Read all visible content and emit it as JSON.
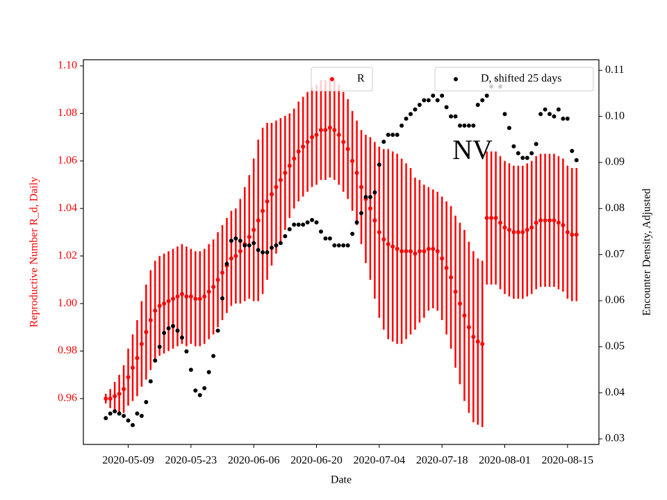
{
  "chart_data": {
    "type": "scatter",
    "annotation": "NV",
    "xlabel": "Date",
    "ylabel": "Reproductive Number R_d, Daily",
    "y2label": "Encounter Density, Adjusted",
    "x": [
      "2020-05-04",
      "2020-05-05",
      "2020-05-06",
      "2020-05-07",
      "2020-05-08",
      "2020-05-09",
      "2020-05-10",
      "2020-05-11",
      "2020-05-12",
      "2020-05-13",
      "2020-05-14",
      "2020-05-15",
      "2020-05-16",
      "2020-05-17",
      "2020-05-18",
      "2020-05-19",
      "2020-05-20",
      "2020-05-21",
      "2020-05-22",
      "2020-05-23",
      "2020-05-24",
      "2020-05-25",
      "2020-05-26",
      "2020-05-27",
      "2020-05-28",
      "2020-05-29",
      "2020-05-30",
      "2020-05-31",
      "2020-06-01",
      "2020-06-02",
      "2020-06-03",
      "2020-06-04",
      "2020-06-05",
      "2020-06-06",
      "2020-06-07",
      "2020-06-08",
      "2020-06-09",
      "2020-06-10",
      "2020-06-11",
      "2020-06-12",
      "2020-06-13",
      "2020-06-14",
      "2020-06-15",
      "2020-06-16",
      "2020-06-17",
      "2020-06-18",
      "2020-06-19",
      "2020-06-20",
      "2020-06-21",
      "2020-06-22",
      "2020-06-23",
      "2020-06-24",
      "2020-06-25",
      "2020-06-26",
      "2020-06-27",
      "2020-06-28",
      "2020-06-29",
      "2020-06-30",
      "2020-07-01",
      "2020-07-02",
      "2020-07-03",
      "2020-07-04",
      "2020-07-05",
      "2020-07-06",
      "2020-07-07",
      "2020-07-08",
      "2020-07-09",
      "2020-07-10",
      "2020-07-11",
      "2020-07-12",
      "2020-07-13",
      "2020-07-14",
      "2020-07-15",
      "2020-07-16",
      "2020-07-17",
      "2020-07-18",
      "2020-07-19",
      "2020-07-20",
      "2020-07-21",
      "2020-07-22",
      "2020-07-23",
      "2020-07-24",
      "2020-07-25",
      "2020-07-26",
      "2020-07-27",
      "2020-07-28",
      "2020-07-29",
      "2020-07-30",
      "2020-07-31",
      "2020-08-01",
      "2020-08-02",
      "2020-08-03",
      "2020-08-04",
      "2020-08-05",
      "2020-08-06",
      "2020-08-07",
      "2020-08-08",
      "2020-08-09",
      "2020-08-10",
      "2020-08-11",
      "2020-08-12",
      "2020-08-13",
      "2020-08-14",
      "2020-08-15",
      "2020-08-16",
      "2020-08-17"
    ],
    "series": [
      {
        "name": "R",
        "color": "#ff0000",
        "axis": "y",
        "values": [
          0.96,
          0.96,
          0.961,
          0.962,
          0.964,
          0.969,
          0.973,
          0.977,
          0.983,
          0.988,
          0.993,
          0.997,
          0.999,
          1.0,
          1.001,
          1.002,
          1.003,
          1.004,
          1.003,
          1.003,
          1.002,
          1.002,
          1.003,
          1.005,
          1.007,
          1.01,
          1.013,
          1.016,
          1.019,
          1.02,
          1.022,
          1.025,
          1.028,
          1.031,
          1.035,
          1.039,
          1.043,
          1.046,
          1.049,
          1.052,
          1.055,
          1.058,
          1.061,
          1.064,
          1.066,
          1.068,
          1.07,
          1.071,
          1.073,
          1.073,
          1.074,
          1.073,
          1.071,
          1.068,
          1.065,
          1.06,
          1.055,
          1.049,
          1.044,
          1.04,
          1.035,
          1.03,
          1.027,
          1.025,
          1.024,
          1.023,
          1.022,
          1.022,
          1.022,
          1.021,
          1.022,
          1.022,
          1.023,
          1.023,
          1.022,
          1.019,
          1.015,
          1.011,
          1.005,
          1.0,
          0.995,
          0.99,
          0.986,
          0.984,
          0.983,
          1.036,
          1.036,
          1.036,
          1.034,
          1.032,
          1.031,
          1.03,
          1.03,
          1.03,
          1.031,
          1.032,
          1.034,
          1.035,
          1.035,
          1.035,
          1.035,
          1.034,
          1.033,
          1.03,
          1.029,
          1.029
        ],
        "errors": [
          0.002,
          0.004,
          0.006,
          0.008,
          0.01,
          0.012,
          0.014,
          0.016,
          0.018,
          0.02,
          0.021,
          0.021,
          0.021,
          0.021,
          0.021,
          0.021,
          0.021,
          0.021,
          0.021,
          0.02,
          0.02,
          0.02,
          0.02,
          0.02,
          0.02,
          0.02,
          0.02,
          0.02,
          0.02,
          0.02,
          0.022,
          0.024,
          0.026,
          0.03,
          0.034,
          0.035,
          0.033,
          0.03,
          0.028,
          0.026,
          0.024,
          0.022,
          0.021,
          0.021,
          0.021,
          0.021,
          0.021,
          0.021,
          0.021,
          0.021,
          0.021,
          0.021,
          0.021,
          0.021,
          0.021,
          0.021,
          0.022,
          0.024,
          0.027,
          0.03,
          0.033,
          0.036,
          0.038,
          0.04,
          0.04,
          0.04,
          0.039,
          0.037,
          0.035,
          0.032,
          0.03,
          0.028,
          0.026,
          0.025,
          0.025,
          0.026,
          0.028,
          0.03,
          0.032,
          0.034,
          0.036,
          0.036,
          0.036,
          0.035,
          0.035,
          0.028,
          0.028,
          0.028,
          0.028,
          0.028,
          0.028,
          0.028,
          0.028,
          0.028,
          0.028,
          0.028,
          0.028,
          0.028,
          0.028,
          0.028,
          0.028,
          0.028,
          0.028,
          0.028,
          0.028,
          0.028
        ]
      },
      {
        "name": "D, shifted 25 days",
        "color": "#000000",
        "axis": "y2",
        "values": [
          0.0345,
          0.0355,
          0.036,
          0.0355,
          0.035,
          0.034,
          0.033,
          0.0355,
          0.035,
          0.038,
          0.0425,
          0.047,
          0.05,
          0.053,
          0.054,
          0.0545,
          0.0535,
          0.052,
          0.049,
          0.045,
          0.0405,
          0.0395,
          0.041,
          0.0445,
          0.048,
          0.0535,
          0.0605,
          0.068,
          0.073,
          0.0735,
          0.073,
          0.072,
          0.072,
          0.0725,
          0.071,
          0.0705,
          0.0705,
          0.0715,
          0.072,
          0.0725,
          0.074,
          0.0755,
          0.0765,
          0.0765,
          0.0765,
          0.077,
          0.0775,
          0.077,
          0.075,
          0.0735,
          0.0735,
          0.072,
          0.072,
          0.072,
          0.072,
          0.0745,
          0.077,
          0.079,
          0.0825,
          0.0825,
          0.0835,
          0.0895,
          0.0945,
          0.096,
          0.096,
          0.096,
          0.098,
          0.0995,
          0.1005,
          0.1015,
          0.1025,
          0.1035,
          0.1035,
          0.1045,
          0.1035,
          0.1045,
          0.102,
          0.1,
          0.1,
          0.098,
          0.098,
          0.098,
          0.098,
          0.1025,
          0.1035,
          0.1045,
          0.1065,
          0.108,
          0.1065,
          0.1005,
          0.0975,
          0.0935,
          0.092,
          0.091,
          0.091,
          0.092,
          0.094,
          0.1005,
          0.1015,
          0.1005,
          0.1,
          0.1015,
          0.0995,
          0.0995,
          0.0925,
          0.0905
        ]
      }
    ],
    "xlim": [
      "2020-04-29",
      "2020-08-22"
    ],
    "xticks": [
      "2020-05-09",
      "2020-05-23",
      "2020-06-06",
      "2020-06-20",
      "2020-07-04",
      "2020-07-18",
      "2020-08-01",
      "2020-08-15"
    ],
    "ylim": [
      0.9407,
      1.1026
    ],
    "yticks": [
      0.96,
      0.98,
      {
        "value": 1,
        "label": "1.00"
      },
      1.02,
      1.04,
      1.06,
      1.08,
      {
        "value": 1.1,
        "label": "1.10"
      }
    ],
    "y2lim": [
      0.0288,
      0.1123
    ],
    "y2ticks": [
      0.03,
      0.04,
      0.05,
      0.06,
      0.07,
      0.08,
      0.09,
      {
        "value": 0.1,
        "label": "0.10"
      },
      0.11
    ],
    "legend": true
  }
}
